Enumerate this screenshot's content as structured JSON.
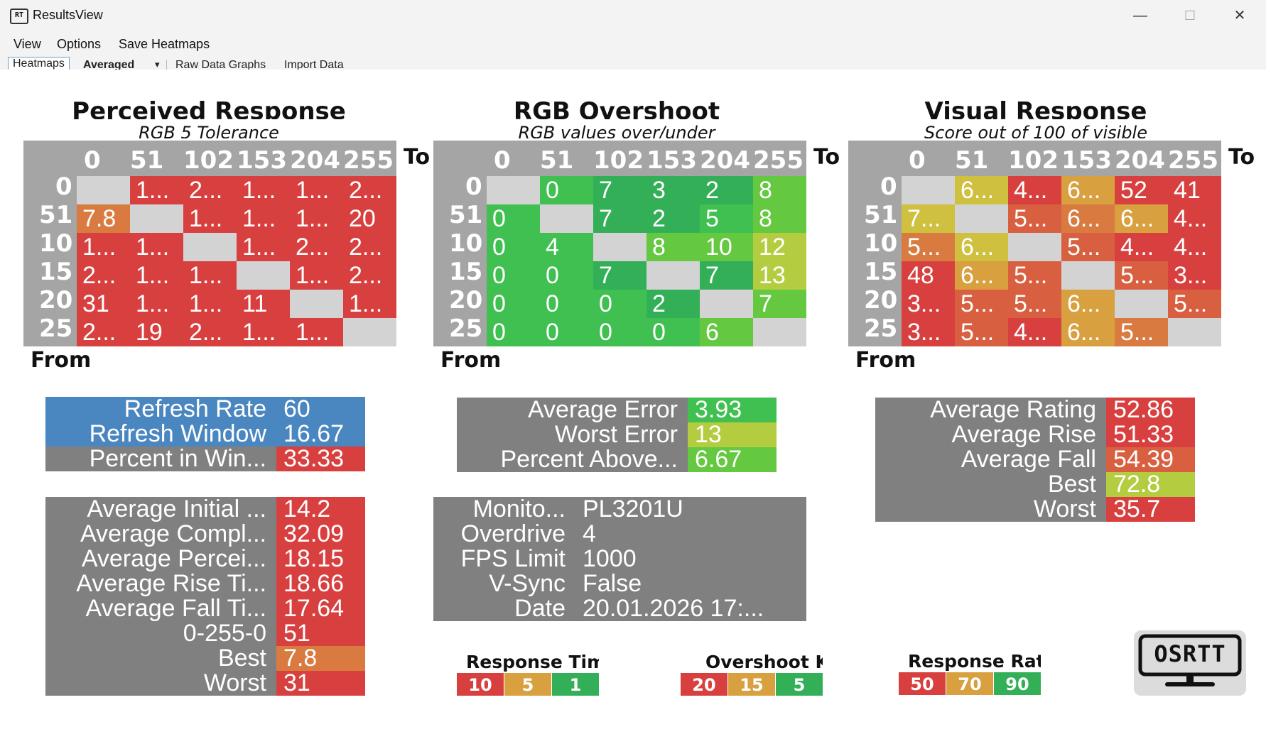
{
  "window": {
    "title": "ResultsView",
    "icon_text": "RT",
    "minimize_glyph": "—",
    "maximize_glyph": "☐",
    "close_glyph": "✕"
  },
  "menu": [
    "View",
    "Options",
    "Save Heatmaps"
  ],
  "tabs": [
    {
      "label": "Heatmaps",
      "selected": true
    },
    {
      "label": "Averaged D",
      "selected": false,
      "bold": true
    },
    {
      "label": "▾",
      "selected": false
    },
    {
      "label": "Raw Data Graphs",
      "selected": false
    },
    {
      "label": "Import Data",
      "selected": false
    }
  ],
  "headers": [
    "0",
    "51",
    "102",
    "153",
    "204",
    "255"
  ],
  "row_headers": [
    "0",
    "51",
    "10",
    "15",
    "20",
    "25"
  ],
  "to_label": "To",
  "from_label": "From",
  "colors": {
    "red": "#d84040",
    "orange": "#d97b40",
    "orange_red": "#d86040",
    "amber": "#d9a040",
    "yellow": "#cfc040",
    "yellow_green": "#b4cc40",
    "light_green": "#64c840",
    "green": "#40c050",
    "dark_green": "#33b057",
    "blank": "#d3d3d3",
    "blue": "#4a86c0",
    "grey": "#808080"
  },
  "heatmaps": [
    {
      "title": "Perceived Response",
      "subtitle": "RGB 5 Tolerance",
      "cells": [
        [
          [
            "",
            "blank"
          ],
          [
            "1...",
            "red"
          ],
          [
            "2...",
            "red"
          ],
          [
            "1...",
            "red"
          ],
          [
            "1...",
            "red"
          ],
          [
            "2...",
            "red"
          ]
        ],
        [
          [
            "7.8",
            "orange"
          ],
          [
            "",
            "blank"
          ],
          [
            "1...",
            "red"
          ],
          [
            "1...",
            "red"
          ],
          [
            "1...",
            "red"
          ],
          [
            "20",
            "red"
          ]
        ],
        [
          [
            "1...",
            "red"
          ],
          [
            "1...",
            "red"
          ],
          [
            "",
            "blank"
          ],
          [
            "1...",
            "red"
          ],
          [
            "2...",
            "red"
          ],
          [
            "2...",
            "red"
          ]
        ],
        [
          [
            "2...",
            "red"
          ],
          [
            "1...",
            "red"
          ],
          [
            "1...",
            "red"
          ],
          [
            "",
            "blank"
          ],
          [
            "1...",
            "red"
          ],
          [
            "2...",
            "red"
          ]
        ],
        [
          [
            "31",
            "red"
          ],
          [
            "1...",
            "red"
          ],
          [
            "1...",
            "red"
          ],
          [
            "11",
            "red"
          ],
          [
            "",
            "blank"
          ],
          [
            "1...",
            "red"
          ]
        ],
        [
          [
            "2...",
            "red"
          ],
          [
            "19",
            "red"
          ],
          [
            "2...",
            "red"
          ],
          [
            "1...",
            "red"
          ],
          [
            "1...",
            "red"
          ],
          [
            "",
            "blank"
          ]
        ]
      ]
    },
    {
      "title": "RGB Overshoot",
      "subtitle": "RGB values over/under",
      "cells": [
        [
          [
            "",
            "blank"
          ],
          [
            "0",
            "green"
          ],
          [
            "7",
            "dark_green"
          ],
          [
            "3",
            "dark_green"
          ],
          [
            "2",
            "dark_green"
          ],
          [
            "8",
            "light_green"
          ]
        ],
        [
          [
            "0",
            "green"
          ],
          [
            "",
            "blank"
          ],
          [
            "7",
            "dark_green"
          ],
          [
            "2",
            "dark_green"
          ],
          [
            "5",
            "green"
          ],
          [
            "8",
            "light_green"
          ]
        ],
        [
          [
            "0",
            "green"
          ],
          [
            "4",
            "green"
          ],
          [
            "",
            "blank"
          ],
          [
            "8",
            "light_green"
          ],
          [
            "10",
            "light_green"
          ],
          [
            "12",
            "yellow_green"
          ]
        ],
        [
          [
            "0",
            "green"
          ],
          [
            "0",
            "green"
          ],
          [
            "7",
            "dark_green"
          ],
          [
            "",
            "blank"
          ],
          [
            "7",
            "dark_green"
          ],
          [
            "13",
            "yellow_green"
          ]
        ],
        [
          [
            "0",
            "green"
          ],
          [
            "0",
            "green"
          ],
          [
            "0",
            "green"
          ],
          [
            "2",
            "dark_green"
          ],
          [
            "",
            "blank"
          ],
          [
            "7",
            "light_green"
          ]
        ],
        [
          [
            "0",
            "green"
          ],
          [
            "0",
            "green"
          ],
          [
            "0",
            "green"
          ],
          [
            "0",
            "green"
          ],
          [
            "6",
            "light_green"
          ],
          [
            "",
            "blank"
          ]
        ]
      ]
    },
    {
      "title": "Visual Response",
      "subtitle": "Score out of 100 of visible",
      "cells": [
        [
          [
            "",
            "blank"
          ],
          [
            "6...",
            "yellow"
          ],
          [
            "4...",
            "red"
          ],
          [
            "6...",
            "amber"
          ],
          [
            "52",
            "red"
          ],
          [
            "41",
            "red"
          ]
        ],
        [
          [
            "7...",
            "yellow"
          ],
          [
            "",
            "blank"
          ],
          [
            "5...",
            "orange_red"
          ],
          [
            "6...",
            "orange"
          ],
          [
            "6...",
            "amber"
          ],
          [
            "4...",
            "red"
          ]
        ],
        [
          [
            "5...",
            "orange"
          ],
          [
            "6...",
            "yellow"
          ],
          [
            "",
            "blank"
          ],
          [
            "5...",
            "orange_red"
          ],
          [
            "4...",
            "red"
          ],
          [
            "4...",
            "red"
          ]
        ],
        [
          [
            "48",
            "red"
          ],
          [
            "6...",
            "amber"
          ],
          [
            "5...",
            "orange_red"
          ],
          [
            "",
            "blank"
          ],
          [
            "5...",
            "orange_red"
          ],
          [
            "3...",
            "red"
          ]
        ],
        [
          [
            "3...",
            "red"
          ],
          [
            "5...",
            "orange_red"
          ],
          [
            "5...",
            "orange_red"
          ],
          [
            "6...",
            "amber"
          ],
          [
            "",
            "blank"
          ],
          [
            "5...",
            "orange_red"
          ]
        ],
        [
          [
            "3...",
            "red"
          ],
          [
            "5...",
            "orange_red"
          ],
          [
            "4...",
            "red"
          ],
          [
            "6...",
            "amber"
          ],
          [
            "5...",
            "orange"
          ],
          [
            "",
            "blank"
          ]
        ]
      ]
    }
  ],
  "refresh_table": [
    {
      "label": "Refresh Rate",
      "value": "60",
      "label_color": "blue",
      "value_color": "blue"
    },
    {
      "label": "Refresh Window",
      "value": "16.67",
      "label_color": "blue",
      "value_color": "blue"
    },
    {
      "label": "Percent in Win...",
      "value": "33.33",
      "label_color": "grey",
      "value_color": "red"
    }
  ],
  "response_stats": [
    {
      "label": "Average Initial ...",
      "value": "14.2",
      "value_color": "red"
    },
    {
      "label": "Average Compl...",
      "value": "32.09",
      "value_color": "red"
    },
    {
      "label": "Average Percei...",
      "value": "18.15",
      "value_color": "red"
    },
    {
      "label": "Average Rise Ti...",
      "value": "18.66",
      "value_color": "red"
    },
    {
      "label": "Average Fall Ti...",
      "value": "17.64",
      "value_color": "red"
    },
    {
      "label": "0-255-0",
      "value": "51",
      "value_color": "red"
    },
    {
      "label": "Best",
      "value": "7.8",
      "value_color": "orange"
    },
    {
      "label": "Worst",
      "value": "31",
      "value_color": "red"
    }
  ],
  "overshoot_stats": [
    {
      "label": "Average Error",
      "value": "3.93",
      "value_color": "green"
    },
    {
      "label": "Worst Error",
      "value": "13",
      "value_color": "yellow_green"
    },
    {
      "label": "Percent Above...",
      "value": "6.67",
      "value_color": "light_green"
    }
  ],
  "monitor_info": [
    {
      "label": "Monito...",
      "value": "PL3201U"
    },
    {
      "label": "Overdrive",
      "value": "4"
    },
    {
      "label": "FPS Limit",
      "value": "1000"
    },
    {
      "label": "V-Sync",
      "value": "False"
    },
    {
      "label": "Date",
      "value": "20.01.2026 17:..."
    }
  ],
  "visual_stats": [
    {
      "label": "Average Rating",
      "value": "52.86",
      "value_color": "red"
    },
    {
      "label": "Average Rise",
      "value": "51.33",
      "value_color": "red"
    },
    {
      "label": "Average Fall",
      "value": "54.39",
      "value_color": "orange_red"
    },
    {
      "label": "Best",
      "value": "72.8",
      "value_color": "yellow_green"
    },
    {
      "label": "Worst",
      "value": "35.7",
      "value_color": "red"
    }
  ],
  "legends": [
    {
      "title": "Response Time",
      "cells": [
        [
          "10",
          "red"
        ],
        [
          "5",
          "amber"
        ],
        [
          "1",
          "dark_green"
        ]
      ]
    },
    {
      "title": "Overshoot Key",
      "cells": [
        [
          "20",
          "red"
        ],
        [
          "15",
          "amber"
        ],
        [
          "5",
          "dark_green"
        ]
      ]
    },
    {
      "title": "Response Rating",
      "cells": [
        [
          "50",
          "red"
        ],
        [
          "70",
          "amber"
        ],
        [
          "90",
          "dark_green"
        ]
      ]
    }
  ],
  "logo_text": "OSRTT"
}
